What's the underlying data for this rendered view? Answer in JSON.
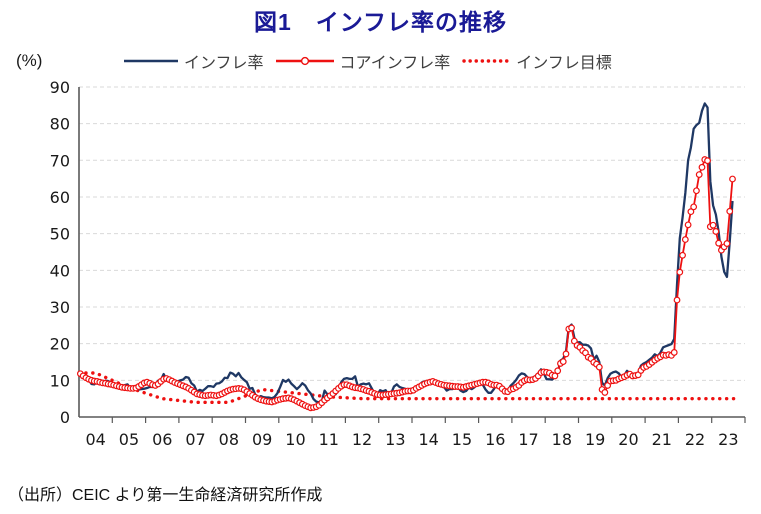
{
  "title": "図1　インフレ率の推移",
  "y_axis_unit_label": "(%)",
  "source_note": "（出所）CEIC より第一生命経済研究所作成",
  "colors": {
    "title": "#1a1a96",
    "headline_line": "#1f3864",
    "core_line": "#ee1111",
    "target_line": "#ee1111",
    "grid": "#d9d9d9",
    "axis": "#595959",
    "tick_text": "#1a1a1a"
  },
  "legend": [
    {
      "label": "インフレ率",
      "color": "#1f3864",
      "style": "solid-line"
    },
    {
      "label": "コアインフレ率",
      "color": "#ee1111",
      "style": "line-with-open-circle-markers"
    },
    {
      "label": "インフレ目標",
      "color": "#ee1111",
      "style": "dotted-line"
    }
  ],
  "chart_data": {
    "type": "line",
    "title": "図1　インフレ率の推移",
    "xlabel": "",
    "ylabel": "(%)",
    "ylim": [
      0,
      90
    ],
    "ytick_interval": 10,
    "grid": "horizontal-dashed",
    "legend_position": "top",
    "x_tick_labels": [
      "04",
      "05",
      "06",
      "07",
      "08",
      "09",
      "10",
      "11",
      "12",
      "13",
      "14",
      "15",
      "16",
      "17",
      "18",
      "19",
      "20",
      "21",
      "22",
      "23"
    ],
    "x_start": "2004-01",
    "x_end": "2023-08",
    "frequency": "monthly",
    "series": [
      {
        "name": "インフレ率",
        "color": "#1f3864",
        "style": "solid",
        "freq": "monthly",
        "values": [
          11.5,
          11.0,
          10.6,
          10.1,
          9.0,
          8.9,
          9.6,
          10.0,
          9.0,
          9.9,
          9.8,
          9.3,
          9.2,
          8.7,
          7.9,
          8.2,
          8.7,
          8.9,
          7.8,
          7.9,
          8.0,
          7.5,
          7.6,
          7.7,
          7.9,
          8.2,
          8.2,
          8.8,
          9.9,
          10.1,
          11.7,
          10.3,
          10.5,
          9.9,
          9.8,
          9.7,
          10.0,
          10.2,
          10.9,
          10.7,
          9.2,
          8.6,
          6.9,
          7.4,
          7.1,
          7.7,
          8.4,
          8.4,
          8.2,
          9.1,
          9.2,
          9.7,
          10.7,
          10.6,
          12.1,
          11.8,
          11.1,
          12.0,
          10.8,
          10.1,
          9.5,
          7.7,
          7.9,
          6.1,
          5.2,
          5.7,
          5.4,
          5.3,
          5.3,
          5.1,
          5.5,
          6.5,
          8.2,
          10.1,
          9.6,
          10.2,
          9.1,
          8.4,
          7.6,
          8.3,
          9.2,
          8.6,
          7.3,
          6.4,
          4.9,
          4.2,
          4.0,
          4.3,
          7.2,
          6.2,
          6.3,
          6.7,
          6.2,
          7.7,
          9.5,
          10.4,
          10.6,
          10.4,
          10.4,
          11.1,
          8.3,
          8.9,
          9.1,
          8.9,
          9.2,
          7.8,
          6.4,
          6.2,
          7.3,
          7.0,
          7.3,
          6.1,
          6.5,
          8.3,
          8.9,
          8.2,
          7.9,
          7.7,
          7.3,
          7.4,
          7.8,
          7.9,
          8.4,
          9.4,
          9.7,
          9.2,
          9.3,
          9.5,
          8.9,
          9.0,
          9.2,
          8.2,
          7.2,
          7.6,
          7.6,
          7.9,
          8.1,
          7.2,
          6.8,
          7.1,
          8.0,
          7.6,
          8.1,
          8.8,
          9.6,
          8.8,
          7.5,
          6.6,
          6.6,
          7.6,
          8.8,
          8.0,
          7.3,
          7.2,
          7.0,
          8.5,
          9.2,
          10.1,
          11.3,
          11.9,
          11.7,
          10.9,
          9.8,
          10.7,
          11.2,
          11.9,
          13.0,
          11.9,
          10.3,
          10.3,
          10.2,
          10.9,
          12.1,
          15.4,
          15.9,
          17.9,
          24.5,
          25.2,
          21.6,
          20.3,
          20.4,
          19.7,
          19.7,
          19.5,
          18.7,
          15.7,
          16.7,
          15.0,
          9.3,
          8.6,
          10.6,
          11.8,
          12.2,
          12.4,
          11.9,
          10.9,
          11.4,
          12.6,
          11.8,
          11.8,
          11.8,
          11.9,
          14.0,
          14.6,
          15.0,
          15.6,
          16.2,
          17.1,
          16.6,
          17.5,
          19.0,
          19.3,
          19.6,
          19.9,
          21.3,
          36.1,
          48.7,
          54.4,
          61.1,
          70.0,
          73.5,
          78.6,
          79.6,
          80.2,
          83.5,
          85.5,
          84.4,
          64.3,
          57.7,
          55.2,
          50.5,
          43.7,
          39.6,
          38.2,
          47.8,
          58.9
        ]
      },
      {
        "name": "コアインフレ率",
        "color": "#ee1111",
        "style": "line-open-circle",
        "freq": "monthly",
        "values": [
          11.8,
          11.2,
          10.7,
          10.3,
          10.0,
          9.8,
          9.7,
          9.5,
          9.3,
          9.2,
          9.0,
          8.9,
          8.7,
          8.5,
          8.3,
          8.1,
          8.0,
          7.9,
          7.8,
          7.8,
          7.9,
          8.3,
          8.8,
          9.3,
          9.5,
          9.2,
          8.8,
          8.6,
          9.0,
          9.7,
          10.3,
          10.5,
          10.2,
          9.8,
          9.4,
          9.1,
          8.8,
          8.5,
          8.2,
          7.8,
          7.3,
          6.8,
          6.3,
          6.1,
          5.9,
          5.8,
          5.9,
          6.0,
          5.9,
          5.8,
          6.0,
          6.3,
          6.7,
          7.1,
          7.4,
          7.6,
          7.7,
          7.8,
          7.7,
          7.4,
          6.9,
          6.4,
          5.9,
          5.4,
          5.0,
          4.7,
          4.5,
          4.3,
          4.2,
          4.1,
          4.3,
          4.6,
          4.8,
          5.0,
          5.1,
          5.2,
          5.0,
          4.7,
          4.3,
          3.9,
          3.5,
          3.1,
          2.8,
          2.5,
          2.6,
          2.8,
          3.2,
          3.9,
          4.6,
          5.2,
          5.8,
          6.4,
          7.1,
          7.8,
          8.4,
          8.8,
          8.8,
          8.5,
          8.2,
          8.0,
          7.9,
          7.7,
          7.5,
          7.2,
          7.0,
          6.7,
          6.4,
          6.1,
          6.0,
          6.0,
          6.1,
          6.2,
          6.3,
          6.4,
          6.5,
          6.6,
          6.8,
          7.0,
          7.1,
          7.1,
          7.3,
          7.8,
          8.2,
          8.6,
          9.0,
          9.3,
          9.5,
          9.7,
          9.4,
          9.1,
          8.9,
          8.7,
          8.6,
          8.5,
          8.4,
          8.3,
          8.3,
          8.2,
          8.1,
          8.3,
          8.5,
          8.7,
          8.9,
          9.1,
          9.3,
          9.5,
          9.5,
          9.3,
          8.9,
          8.7,
          8.7,
          8.4,
          7.7,
          7.0,
          6.9,
          7.5,
          7.7,
          8.1,
          8.6,
          9.4,
          9.9,
          10.2,
          10.1,
          10.2,
          10.5,
          11.2,
          12.1,
          12.3,
          12.2,
          12.0,
          11.4,
          11.2,
          12.6,
          14.6,
          15.1,
          17.2,
          24.0,
          24.3,
          20.7,
          19.5,
          19.0,
          18.1,
          17.5,
          16.3,
          15.9,
          14.9,
          14.4,
          13.6,
          7.5,
          6.7,
          8.6,
          9.8,
          9.9,
          10.0,
          10.4,
          10.7,
          11.0,
          11.4,
          11.7,
          11.2,
          11.3,
          11.5,
          12.7,
          13.5,
          13.8,
          14.3,
          14.9,
          15.5,
          16.0,
          16.4,
          16.9,
          16.8,
          17.0,
          16.8,
          17.6,
          31.9,
          39.5,
          44.1,
          48.4,
          52.4,
          56.0,
          57.3,
          61.7,
          66.1,
          68.1,
          70.2,
          69.9,
          51.9,
          52.3,
          50.6,
          47.4,
          45.5,
          46.4,
          47.3,
          56.1,
          64.9
        ]
      },
      {
        "name": "インフレ目標",
        "color": "#ee1111",
        "style": "dotted",
        "freq": "yearly",
        "values": [
          12,
          8,
          5,
          4,
          4,
          7.5,
          6.5,
          5.5,
          5,
          5,
          5,
          5,
          5,
          5,
          5,
          5,
          5,
          5,
          5,
          5
        ]
      }
    ]
  }
}
